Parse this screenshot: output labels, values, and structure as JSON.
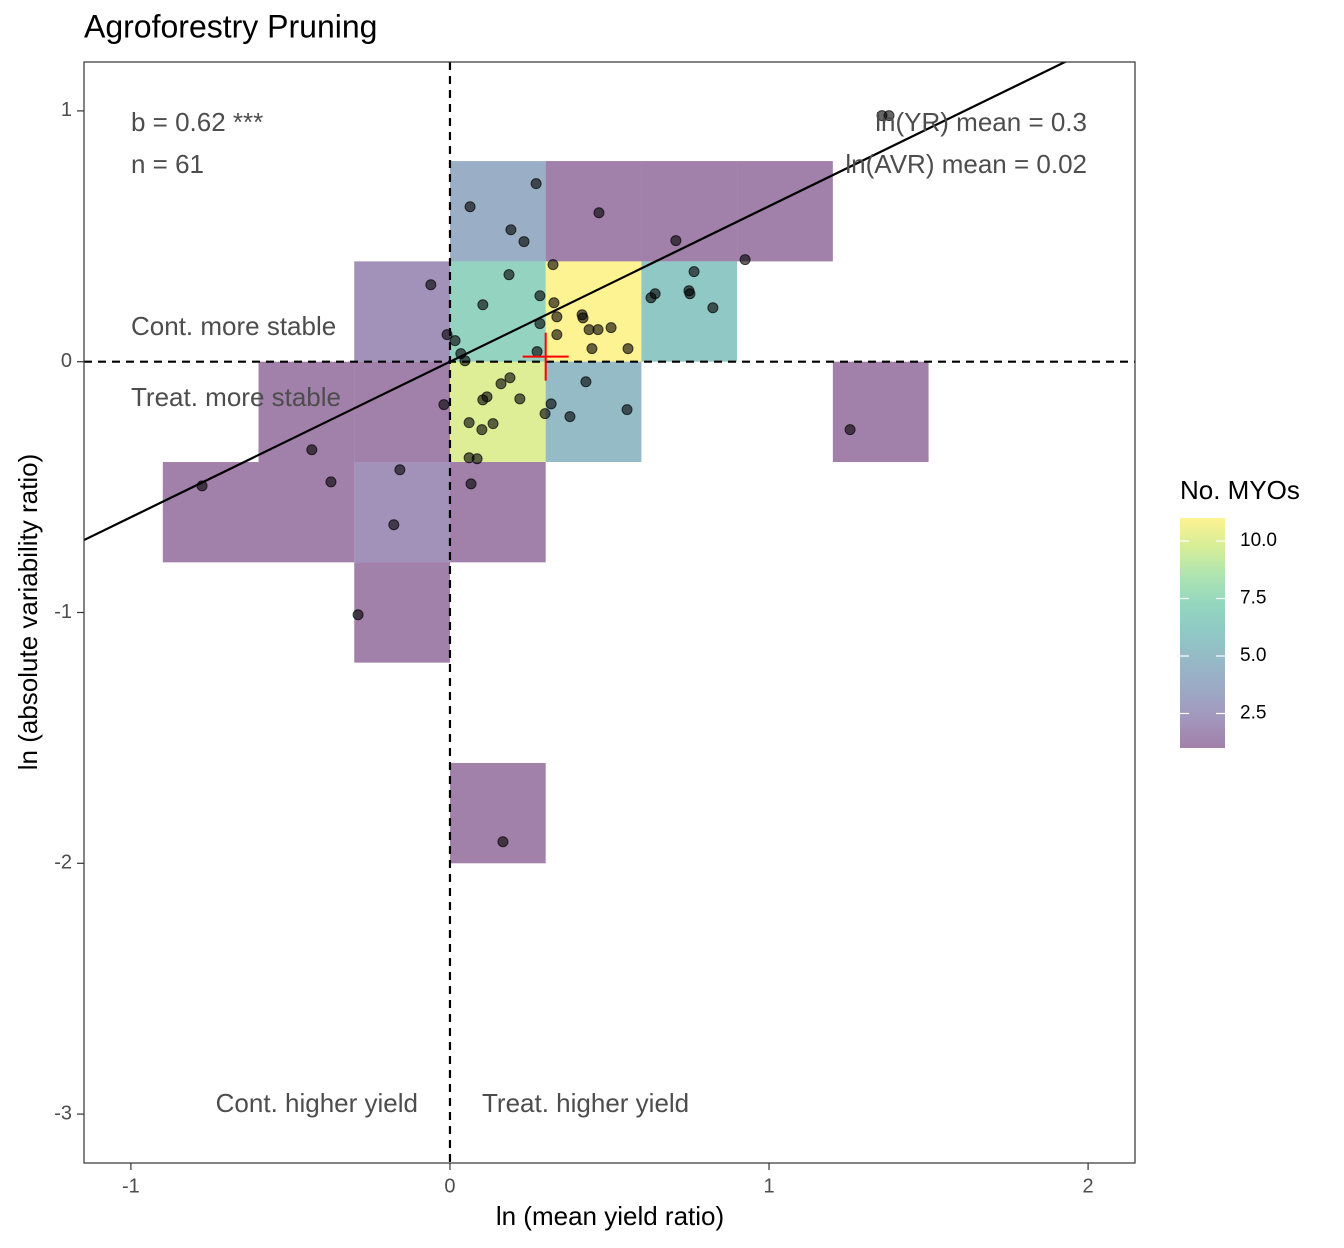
{
  "chart_data": {
    "type": "scatter",
    "title": "Agroforestry Pruning",
    "x_label": "ln (mean yield ratio)",
    "y_label": "ln (absolute variability ratio)",
    "xlim": [
      -1.147,
      2.147
    ],
    "ylim": [
      -3.195,
      1.195
    ],
    "xticks": [
      -1,
      0,
      1,
      2
    ],
    "yticks": [
      1,
      0,
      -1,
      -2,
      -3
    ],
    "x": [
      -0.777,
      -0.433,
      -0.373,
      -0.288,
      -0.176,
      -0.157,
      -0.06,
      -0.019,
      -0.009,
      0.016,
      0.034,
      0.047,
      0.063,
      0.06,
      0.06,
      0.066,
      0.085,
      0.1,
      0.103,
      0.116,
      0.103,
      0.135,
      0.16,
      0.166,
      0.185,
      0.188,
      0.191,
      0.219,
      0.232,
      0.27,
      0.273,
      0.282,
      0.282,
      0.298,
      0.317,
      0.323,
      0.326,
      0.335,
      0.335,
      0.376,
      0.414,
      0.417,
      0.426,
      0.436,
      0.445,
      0.464,
      0.467,
      0.505,
      0.555,
      0.558,
      0.63,
      0.643,
      0.708,
      0.749,
      0.752,
      0.765,
      0.824,
      0.925,
      1.254,
      1.354,
      1.376
    ],
    "y": [
      -0.495,
      -0.351,
      -0.479,
      -1.009,
      -0.65,
      -0.431,
      0.307,
      -0.171,
      0.108,
      0.084,
      0.032,
      0.004,
      0.618,
      -0.243,
      -0.383,
      -0.487,
      -0.387,
      -0.271,
      -0.152,
      -0.14,
      0.227,
      -0.247,
      -0.088,
      -1.914,
      0.347,
      -0.064,
      0.526,
      -0.148,
      0.479,
      0.71,
      0.04,
      0.263,
      0.152,
      -0.207,
      -0.168,
      0.387,
      0.235,
      0.179,
      0.108,
      -0.219,
      0.187,
      0.175,
      -0.08,
      0.128,
      0.052,
      0.128,
      0.594,
      0.136,
      -0.191,
      0.052,
      0.255,
      0.271,
      0.483,
      0.283,
      0.271,
      0.359,
      0.215,
      0.407,
      -0.271,
      0.981,
      0.981
    ],
    "point_color": "#000000",
    "binwidth": [
      0.3,
      0.4
    ],
    "tiles": [
      {
        "x": 0,
        "y": 0.4,
        "count": 4
      },
      {
        "x": 0.3,
        "y": 0.4,
        "count": 1
      },
      {
        "x": 0.6,
        "y": 0.4,
        "count": 1
      },
      {
        "x": 0.9,
        "y": 0.4,
        "count": 1
      },
      {
        "x": -0.3,
        "y": 0,
        "count": 2
      },
      {
        "x": 0,
        "y": 0,
        "count": 7
      },
      {
        "x": 0.3,
        "y": 0,
        "count": 11
      },
      {
        "x": 0.6,
        "y": 0,
        "count": 6
      },
      {
        "x": -0.6,
        "y": -0.4,
        "count": 1
      },
      {
        "x": -0.3,
        "y": -0.4,
        "count": 1
      },
      {
        "x": 0,
        "y": -0.4,
        "count": 10
      },
      {
        "x": 0.3,
        "y": -0.4,
        "count": 5
      },
      {
        "x": 1.2,
        "y": -0.4,
        "count": 1
      },
      {
        "x": -0.9,
        "y": -0.8,
        "count": 1
      },
      {
        "x": -0.6,
        "y": -0.8,
        "count": 1
      },
      {
        "x": -0.3,
        "y": -0.8,
        "count": 2
      },
      {
        "x": 0,
        "y": -0.8,
        "count": 1
      },
      {
        "x": -0.3,
        "y": -1.2,
        "count": 1
      },
      {
        "x": 0,
        "y": -2,
        "count": 1
      }
    ],
    "tile_alpha": 0.5,
    "colorscale": [
      "#440154",
      "#472d7b",
      "#3b528b",
      "#2c728e",
      "#21918c",
      "#28ae80",
      "#5ec962",
      "#addc30",
      "#fde725"
    ],
    "fill_lim": [
      1,
      11
    ],
    "legend_title": "No. MYOs",
    "legend_ticks": [
      {
        "value": 10,
        "label": "10.0"
      },
      7.5,
      {
        "value": 5,
        "label": "5.0"
      },
      2.5
    ],
    "trend_line": {
      "slope": 0.62,
      "intercept": 0,
      "color": "#000000"
    },
    "ref_lines": {
      "x": 0,
      "y": 0
    },
    "mean_point": {
      "x": 0.3,
      "y": 0.02,
      "color": "#ff0000"
    },
    "annotations": [
      "b = 0.62 ***",
      "n = 61",
      "ln(YR) mean = 0.3",
      "ln(AVR) mean = 0.02",
      "Cont. more stable",
      "Treat. more stable",
      "Cont. higher yield",
      "Treat. higher yield"
    ]
  }
}
